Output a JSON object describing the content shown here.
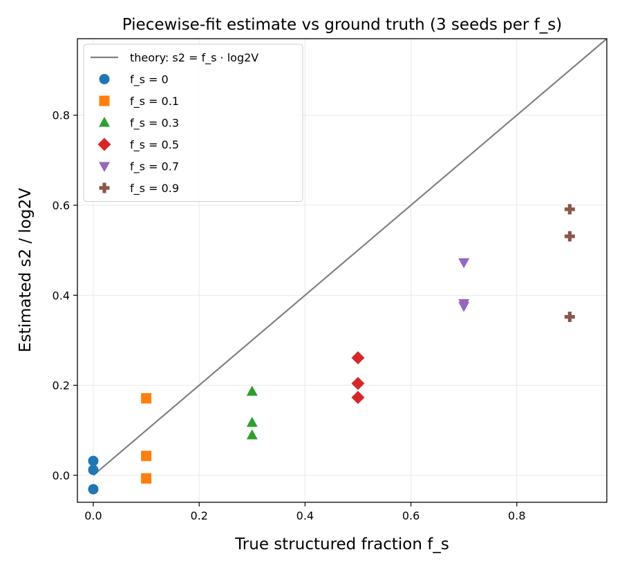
{
  "chart_data": {
    "type": "scatter",
    "title": "Piecewise-fit estimate vs ground truth (3 seeds per f_s)",
    "xlabel": "True structured fraction f_s",
    "ylabel": "Estimated s2 / log2V",
    "xlim": [
      -0.03,
      0.97
    ],
    "ylim": [
      -0.06,
      0.97
    ],
    "xticks": [
      0.0,
      0.2,
      0.4,
      0.6,
      0.8
    ],
    "xtick_labels": [
      "0.0",
      "0.2",
      "0.4",
      "0.6",
      "0.8"
    ],
    "yticks": [
      0.0,
      0.2,
      0.4,
      0.6,
      0.8
    ],
    "ytick_labels": [
      "0.0",
      "0.2",
      "0.4",
      "0.6",
      "0.8"
    ],
    "grid": true,
    "legend_position": "top-left",
    "theory_line": {
      "name": "theory: s2 = f_s · log2V",
      "x": [
        0.0,
        0.97
      ],
      "y": [
        0.0,
        0.97
      ],
      "color": "#808080"
    },
    "series": [
      {
        "name": "f_s = 0",
        "marker": "circle",
        "color": "#1f77b4",
        "x": [
          0.0,
          0.0,
          0.0
        ],
        "y": [
          0.032,
          0.012,
          -0.031
        ]
      },
      {
        "name": "f_s = 0.1",
        "marker": "square",
        "color": "#ff7f0e",
        "x": [
          0.1,
          0.1,
          0.1
        ],
        "y": [
          0.171,
          0.043,
          -0.007
        ]
      },
      {
        "name": "f_s = 0.3",
        "marker": "triangle-up",
        "color": "#2ca02c",
        "x": [
          0.3,
          0.3,
          0.3
        ],
        "y": [
          0.186,
          0.117,
          0.089
        ]
      },
      {
        "name": "f_s = 0.5",
        "marker": "diamond",
        "color": "#d62728",
        "x": [
          0.5,
          0.5,
          0.5
        ],
        "y": [
          0.261,
          0.204,
          0.173
        ]
      },
      {
        "name": "f_s = 0.7",
        "marker": "triangle-down",
        "color": "#9467bd",
        "x": [
          0.7,
          0.7,
          0.7
        ],
        "y": [
          0.473,
          0.382,
          0.376
        ]
      },
      {
        "name": "f_s = 0.9",
        "marker": "plus",
        "color": "#8c564b",
        "x": [
          0.9,
          0.9,
          0.9
        ],
        "y": [
          0.591,
          0.531,
          0.352
        ]
      }
    ]
  }
}
